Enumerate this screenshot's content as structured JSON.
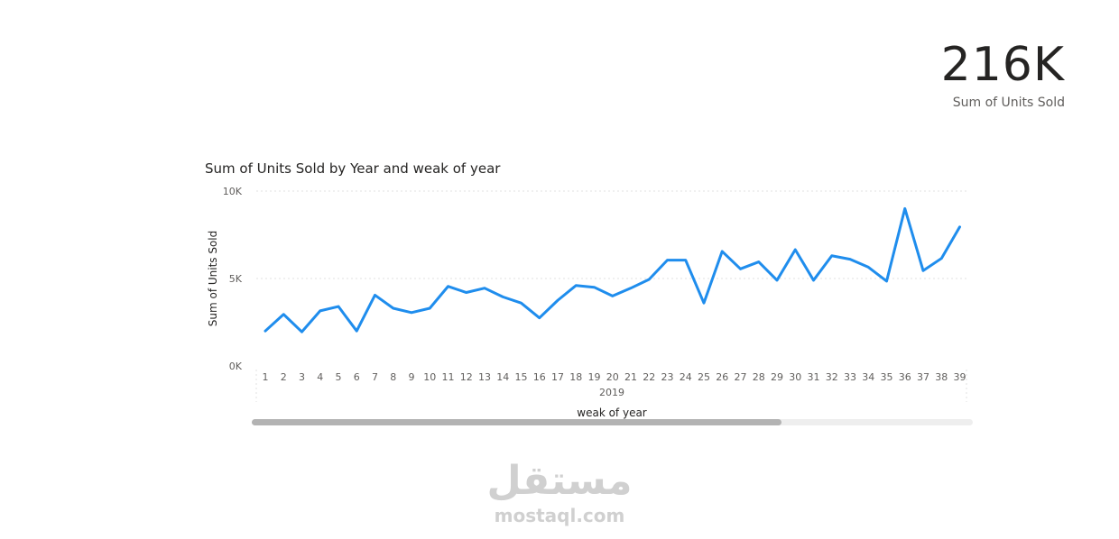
{
  "kpi": {
    "value": "216K",
    "label": "Sum of Units Sold"
  },
  "watermark": {
    "logo": "مستقل",
    "text": "mostaql.com"
  },
  "colors": {
    "line": "#1f8ded",
    "grid": "#e1e1e1",
    "text": "#605e5c",
    "title": "#252423"
  },
  "chart_data": {
    "type": "line",
    "title": "Sum of Units Sold by Year and weak of year",
    "xlabel": "weak of year",
    "ylabel": "Sum of Units Sold",
    "year_label": "2019",
    "ylim": [
      0,
      10000
    ],
    "y_ticks": [
      0,
      5000,
      10000
    ],
    "y_tick_labels": [
      "0K",
      "5K",
      "10K"
    ],
    "grid": true,
    "x": [
      1,
      2,
      3,
      4,
      5,
      6,
      7,
      8,
      9,
      10,
      11,
      12,
      13,
      14,
      15,
      16,
      17,
      18,
      19,
      20,
      21,
      22,
      23,
      24,
      25,
      26,
      27,
      28,
      29,
      30,
      31,
      32,
      33,
      34,
      35,
      36,
      37,
      38,
      39
    ],
    "values": [
      2000,
      2950,
      1950,
      3150,
      3400,
      2000,
      4050,
      3300,
      3050,
      3300,
      4550,
      4200,
      4450,
      3950,
      3600,
      2750,
      3750,
      4600,
      4500,
      4000,
      4450,
      4950,
      6050,
      6050,
      3600,
      6550,
      5550,
      5950,
      4900,
      6650,
      4900,
      6300,
      6100,
      5650,
      4850,
      9000,
      5450,
      6150,
      7950
    ]
  }
}
